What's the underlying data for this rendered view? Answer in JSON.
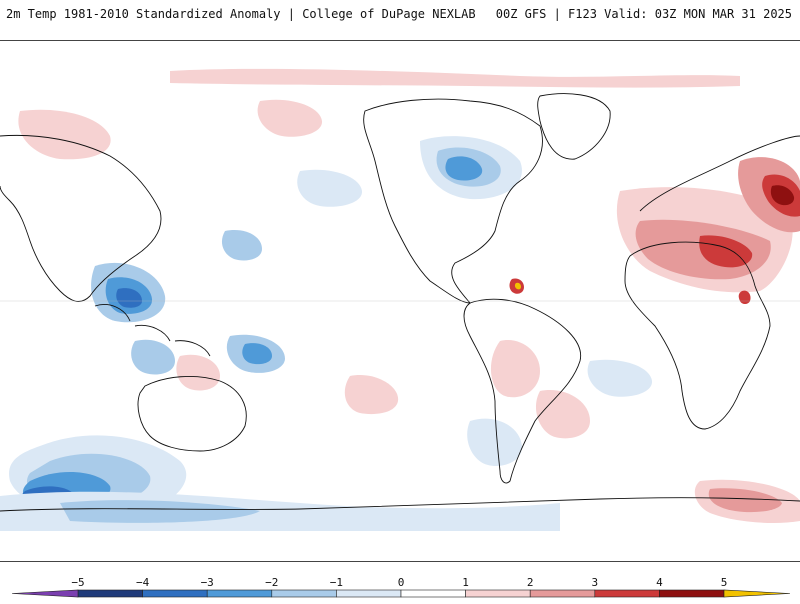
{
  "header": {
    "left_title": "2m Temp 1981-2010 Standardized Anomaly | College of DuPage NEXLAB",
    "right_title": "00Z GFS | F123 Valid: 03Z MON MAR 31 2025"
  },
  "colorbar": {
    "ticks": [
      "-5",
      "-4",
      "-3",
      "-2",
      "-1",
      "0",
      "1",
      "2",
      "3",
      "4",
      "5"
    ],
    "colors": {
      "lt_-5": "#7b3fb0",
      "-5_-4": "#1f3a7a",
      "-4_-3": "#2f6fc0",
      "-3_-2": "#4f9ad8",
      "-2_-1": "#a9cbe9",
      "-1_0": "#dbe8f5",
      "0_1": "#ffffff",
      "1_2": "#f6d2d2",
      "2_3": "#e59a9a",
      "3_4": "#cc3a3a",
      "4_5": "#8e1010",
      "gt_5": "#f2c200"
    }
  },
  "map": {
    "projection": "equirectangular",
    "center_longitude": "180",
    "variable": "2m temperature standardized anomaly"
  }
}
